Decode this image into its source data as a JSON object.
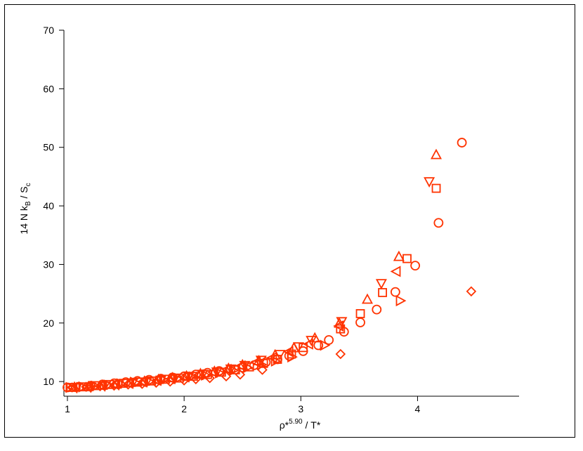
{
  "chart_data": {
    "type": "scatter",
    "xlabel_parts": {
      "base": "ρ*",
      "sup": "5.90",
      "tail": " / T*"
    },
    "ylabel_parts": {
      "pre": "14 N k",
      "sub1": "B",
      "mid": " / S",
      "sub2": "c"
    },
    "xlim": [
      0.97,
      4.87
    ],
    "ylim": [
      7.5,
      70
    ],
    "xticks": [
      1,
      2,
      3,
      4
    ],
    "yticks": [
      10,
      20,
      30,
      40,
      50,
      60,
      70
    ],
    "grid": false,
    "marker_color": "#ff3300",
    "series": [
      {
        "marker": "circle",
        "x": [
          1.0,
          1.1,
          1.2,
          1.3,
          1.4,
          1.5,
          1.6,
          1.7,
          1.8,
          1.9,
          2.0,
          2.1,
          2.2,
          2.3,
          2.4,
          2.5,
          2.6,
          2.7,
          2.8,
          2.9,
          3.02,
          3.15,
          3.24,
          3.37,
          3.51,
          3.65,
          3.81,
          3.98,
          4.18,
          4.38
        ],
        "y": [
          9.0,
          9.1,
          9.3,
          9.5,
          9.7,
          9.9,
          10.1,
          10.3,
          10.5,
          10.7,
          10.9,
          11.2,
          11.5,
          11.8,
          12.1,
          12.4,
          12.8,
          13.3,
          13.8,
          14.4,
          15.2,
          16.2,
          17.1,
          18.5,
          20.1,
          22.3,
          25.3,
          29.8,
          37.1,
          50.8
        ]
      },
      {
        "marker": "square",
        "x": [
          1.03,
          1.14,
          1.25,
          1.36,
          1.48,
          1.6,
          1.72,
          1.84,
          1.96,
          2.08,
          2.2,
          2.32,
          2.44,
          2.56,
          2.68,
          2.8,
          2.92,
          3.02,
          3.34,
          3.51,
          3.7,
          3.91,
          4.16
        ],
        "y": [
          9.0,
          9.1,
          9.3,
          9.5,
          9.7,
          9.9,
          10.1,
          10.4,
          10.6,
          10.9,
          11.2,
          11.6,
          12.0,
          12.5,
          13.1,
          13.8,
          14.7,
          15.8,
          19.0,
          21.6,
          25.2,
          31.0,
          43.0
        ]
      },
      {
        "marker": "triangle-up",
        "x": [
          1.06,
          1.18,
          1.3,
          1.42,
          1.54,
          1.66,
          1.78,
          1.9,
          2.02,
          2.14,
          2.26,
          2.38,
          2.5,
          2.64,
          2.78,
          2.94,
          3.12,
          3.33,
          3.57,
          3.84,
          4.16
        ],
        "y": [
          9.0,
          9.1,
          9.3,
          9.5,
          9.8,
          10.0,
          10.3,
          10.6,
          10.9,
          11.3,
          11.7,
          12.2,
          12.8,
          13.5,
          14.5,
          15.7,
          17.4,
          19.9,
          24.0,
          31.3,
          48.7
        ]
      },
      {
        "marker": "triangle-down",
        "x": [
          1.08,
          1.2,
          1.32,
          1.44,
          1.56,
          1.68,
          1.8,
          1.92,
          2.04,
          2.16,
          2.28,
          2.4,
          2.52,
          2.66,
          2.82,
          2.98,
          3.09,
          3.35,
          3.69,
          4.1
        ],
        "y": [
          9.0,
          9.1,
          9.3,
          9.5,
          9.8,
          10.0,
          10.3,
          10.6,
          10.9,
          11.3,
          11.7,
          12.2,
          12.8,
          13.7,
          14.7,
          16.0,
          17.1,
          20.3,
          26.8,
          44.2
        ]
      },
      {
        "marker": "triangle-left",
        "x": [
          1.05,
          1.17,
          1.29,
          1.41,
          1.53,
          1.65,
          1.77,
          1.89,
          2.01,
          2.13,
          2.25,
          2.37,
          2.49,
          2.62,
          2.76,
          2.9,
          3.07,
          3.33,
          3.82
        ],
        "y": [
          9.0,
          9.1,
          9.3,
          9.5,
          9.7,
          10.0,
          10.2,
          10.5,
          10.8,
          11.2,
          11.6,
          12.1,
          12.7,
          13.3,
          14.1,
          15.1,
          16.4,
          19.5,
          28.8
        ]
      },
      {
        "marker": "triangle-right",
        "x": [
          1.02,
          1.13,
          1.24,
          1.35,
          1.46,
          1.58,
          1.7,
          1.82,
          1.94,
          2.06,
          2.18,
          2.3,
          2.42,
          2.54,
          2.66,
          2.78,
          2.92,
          3.2,
          3.85
        ],
        "y": [
          9.0,
          9.1,
          9.2,
          9.4,
          9.6,
          9.8,
          10.0,
          10.3,
          10.5,
          10.8,
          11.1,
          11.5,
          11.9,
          12.4,
          12.9,
          13.5,
          14.2,
          16.2,
          23.8
        ]
      },
      {
        "marker": "diamond",
        "x": [
          1.04,
          1.16,
          1.28,
          1.4,
          1.52,
          1.64,
          1.76,
          1.88,
          2.0,
          2.1,
          2.22,
          2.36,
          2.48,
          2.67,
          3.34,
          4.46
        ],
        "y": [
          9.0,
          9.1,
          9.2,
          9.3,
          9.5,
          9.6,
          9.8,
          10.0,
          10.2,
          10.4,
          10.6,
          10.9,
          11.2,
          12.0,
          14.7,
          25.4
        ]
      }
    ]
  }
}
